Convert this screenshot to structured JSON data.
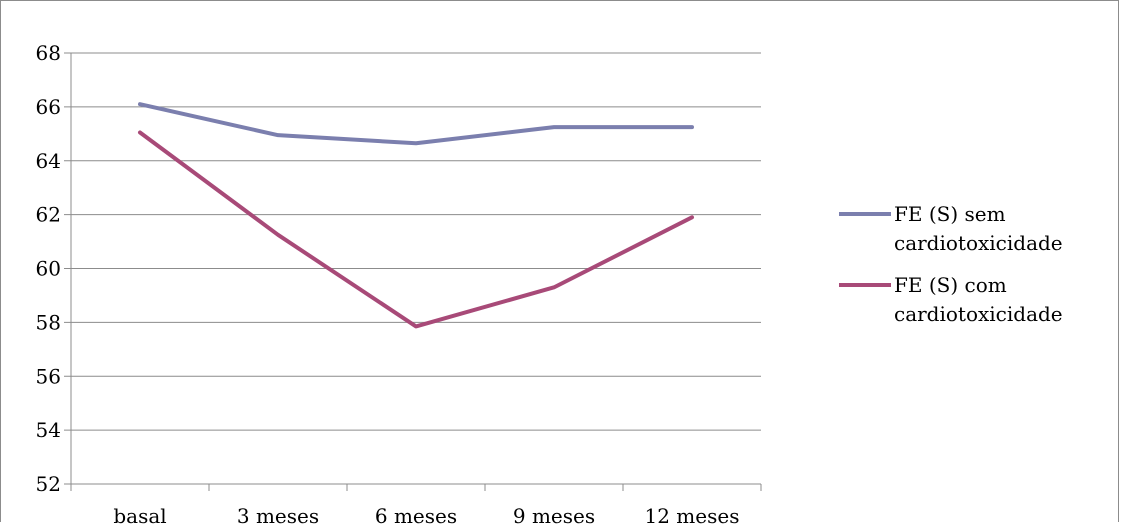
{
  "chart_data": {
    "type": "line",
    "title": "",
    "xlabel": "",
    "ylabel": "",
    "categories": [
      "basal",
      "3 meses",
      "6 meses",
      "9 meses",
      "12 meses"
    ],
    "ylim": [
      52,
      68
    ],
    "ystep": 2,
    "grid": true,
    "legend_position": "right",
    "series": [
      {
        "name": "FE (S) sem cardiotoxicidade",
        "legend_lines": [
          "FE (S) sem",
          "cardiotoxicidade"
        ],
        "color": "#7b7fae",
        "values": [
          66.1,
          64.95,
          64.65,
          65.25,
          65.25
        ]
      },
      {
        "name": "FE (S) com cardiotoxicidade",
        "legend_lines": [
          "FE (S) com",
          "cardiotoxicidade"
        ],
        "color": "#a84a78",
        "values": [
          65.05,
          61.25,
          57.85,
          59.3,
          61.9
        ]
      }
    ]
  }
}
